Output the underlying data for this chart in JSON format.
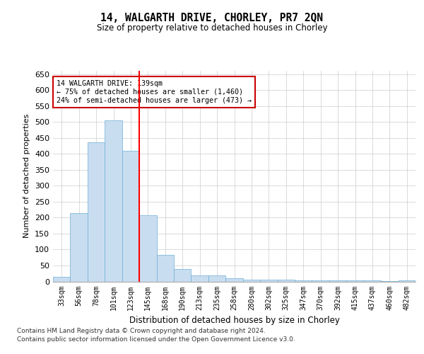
{
  "title": "14, WALGARTH DRIVE, CHORLEY, PR7 2QN",
  "subtitle": "Size of property relative to detached houses in Chorley",
  "xlabel": "Distribution of detached houses by size in Chorley",
  "ylabel": "Number of detached properties",
  "categories": [
    "33sqm",
    "56sqm",
    "78sqm",
    "101sqm",
    "123sqm",
    "145sqm",
    "168sqm",
    "190sqm",
    "213sqm",
    "235sqm",
    "258sqm",
    "280sqm",
    "302sqm",
    "325sqm",
    "347sqm",
    "370sqm",
    "392sqm",
    "415sqm",
    "437sqm",
    "460sqm",
    "482sqm"
  ],
  "values": [
    15,
    213,
    437,
    505,
    410,
    207,
    84,
    38,
    18,
    18,
    10,
    5,
    5,
    5,
    4,
    4,
    4,
    4,
    3,
    2,
    4
  ],
  "bar_color": "#c9ddf0",
  "bar_edge_color": "#6baed6",
  "annotation_line1": "14 WALGARTH DRIVE: 139sqm",
  "annotation_line2": "← 75% of detached houses are smaller (1,460)",
  "annotation_line3": "24% of semi-detached houses are larger (473) →",
  "annotation_box_color": "#ffffff",
  "annotation_box_edge": "#cc0000",
  "ylim": [
    0,
    660
  ],
  "yticks": [
    0,
    50,
    100,
    150,
    200,
    250,
    300,
    350,
    400,
    450,
    500,
    550,
    600,
    650
  ],
  "footer_line1": "Contains HM Land Registry data © Crown copyright and database right 2024.",
  "footer_line2": "Contains public sector information licensed under the Open Government Licence v3.0.",
  "background_color": "#ffffff",
  "grid_color": "#cccccc"
}
